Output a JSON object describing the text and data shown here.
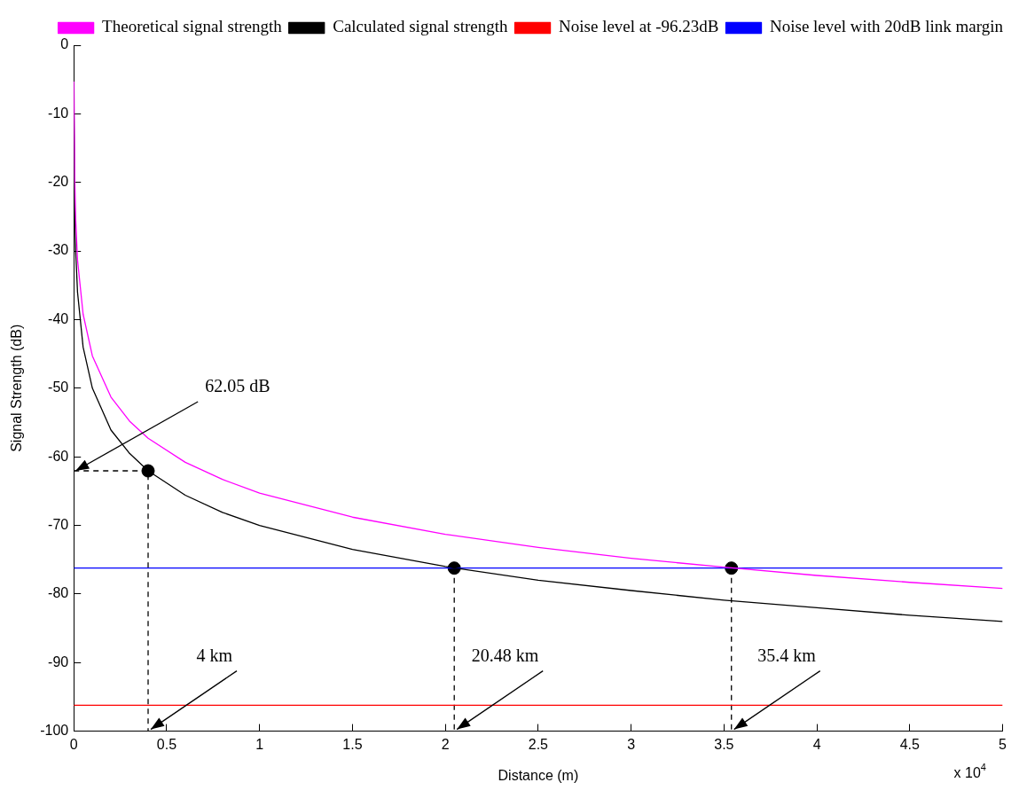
{
  "chart_data": {
    "type": "line",
    "xlabel": "Distance (m)",
    "ylabel": "Signal Strength (dB)",
    "xlim": [
      0,
      5
    ],
    "ylim": [
      -100,
      0
    ],
    "xticks": [
      0,
      0.5,
      1,
      1.5,
      2,
      2.5,
      3,
      3.5,
      4,
      4.5,
      5
    ],
    "yticks": [
      -100,
      -90,
      -80,
      -70,
      -60,
      -50,
      -40,
      -30,
      -20,
      -10,
      0
    ],
    "grid": false,
    "legend": "top right",
    "marker": "none",
    "line_style": "solid",
    "series": [
      {
        "name": "Theoretical signal strength",
        "color": "#ff00ff",
        "x": [
          0.001,
          0.005,
          0.01,
          0.02,
          0.05,
          0.1,
          0.2,
          0.3,
          0.4,
          0.6,
          0.8,
          1,
          1.5,
          2,
          2.5,
          3,
          3.5,
          4,
          4.5,
          5
        ],
        "values": [
          -5.3,
          -19.2,
          -25.3,
          -31.3,
          -39.2,
          -45.3,
          -51.3,
          -54.8,
          -57.3,
          -60.8,
          -63.3,
          -65.3,
          -68.8,
          -71.3,
          -73.2,
          -74.8,
          -76.1,
          -77.3,
          -78.3,
          -79.2
        ]
      },
      {
        "name": "Calculated signal strength",
        "color": "#000000",
        "x": [
          0.001,
          0.005,
          0.01,
          0.02,
          0.05,
          0.1,
          0.2,
          0.3,
          0.4,
          0.6,
          0.8,
          1,
          1.5,
          2,
          2.5,
          3,
          3.5,
          4,
          4.5,
          5
        ],
        "values": [
          -10,
          -24,
          -30,
          -36,
          -44,
          -50,
          -56.1,
          -59.5,
          -62.05,
          -65.6,
          -68.1,
          -70,
          -73.5,
          -76,
          -78,
          -79.5,
          -80.9,
          -82,
          -83.1,
          -84
        ]
      },
      {
        "name": "Noise level at -96.23dB",
        "color": "#ff0000",
        "x": [
          0,
          5
        ],
        "values": [
          -96.23,
          -96.23
        ]
      },
      {
        "name": "Noise level with 20dB link margin",
        "color": "#0000ff",
        "x": [
          0,
          5
        ],
        "values": [
          -76.23,
          -76.23
        ]
      },
      {
        "type": "scatter",
        "marker": "circle",
        "color": "#000000",
        "x": [
          0.4,
          2.048,
          3.54
        ],
        "values": [
          -62.05,
          -76.23,
          -76.23
        ]
      },
      {
        "color": "#000000",
        "line_style": "dashed",
        "x": [
          0,
          0.4,
          0.4
        ],
        "values": [
          -62.05,
          -62.05,
          -100
        ]
      },
      {
        "color": "#000000",
        "line_style": "dashed",
        "x": [
          2.048,
          2.048
        ],
        "values": [
          -76.23,
          -100
        ]
      },
      {
        "color": "#000000",
        "line_style": "dashed",
        "x": [
          3.54,
          3.54
        ],
        "values": [
          -76.23,
          -100
        ]
      }
    ],
    "annotations": [
      {
        "text": "62.05 dB",
        "x": 0,
        "y": -62.05
      },
      {
        "text": "4 km",
        "x": 0.4,
        "y": -100
      },
      {
        "text": "20.48 km",
        "x": 2.048,
        "y": -100
      },
      {
        "text": "35.4 km",
        "x": 3.54,
        "y": -100
      },
      "x 10$^{4}$"
    ]
  }
}
